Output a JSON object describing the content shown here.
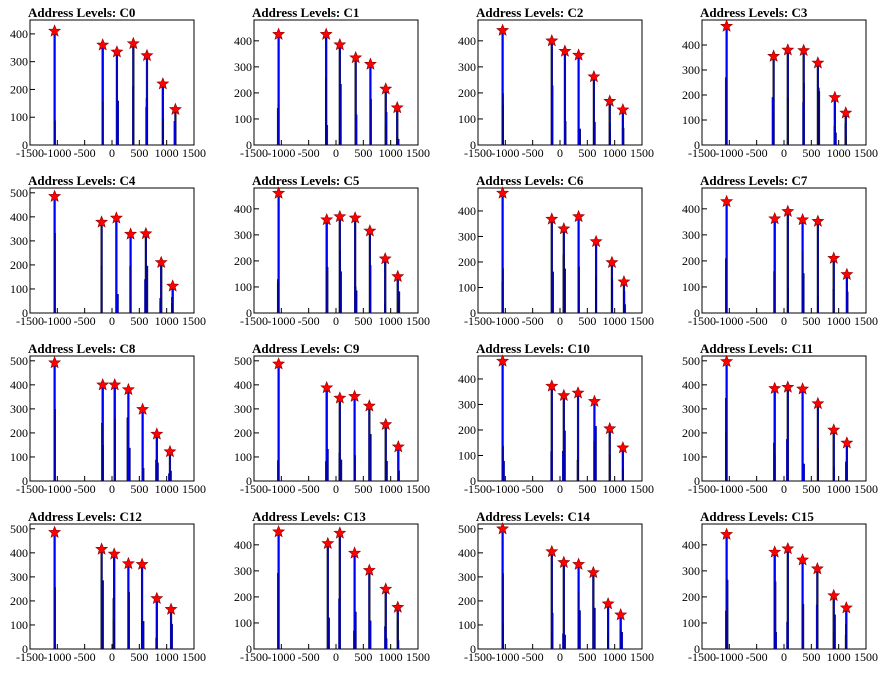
{
  "colors": {
    "bar_line": "#000000",
    "bar_fill": "#0000ff",
    "marker": "#ff0000"
  },
  "chart_data": [
    {
      "type": "bar",
      "title": "Address Levels: C0",
      "xlim": [
        -1500,
        1500
      ],
      "ylim": [
        0,
        450
      ],
      "xticks": [
        -1500,
        -1000,
        -500,
        0,
        500,
        1000,
        1500
      ],
      "xtick_labels": [
        "-1500",
        "-1000",
        "-500",
        "0",
        "500",
        "1000",
        "1500"
      ],
      "yticks": [
        0,
        100,
        200,
        300,
        400
      ],
      "ytick_labels": [
        "0",
        "100",
        "200",
        "300",
        "400"
      ],
      "peaks": [
        {
          "x": -1050,
          "y": 410
        },
        {
          "x": -170,
          "y": 360
        },
        {
          "x": 90,
          "y": 335
        },
        {
          "x": 390,
          "y": 365
        },
        {
          "x": 640,
          "y": 322
        },
        {
          "x": 930,
          "y": 220
        },
        {
          "x": 1160,
          "y": 128
        }
      ]
    },
    {
      "type": "bar",
      "title": "Address Levels: C1",
      "xlim": [
        -1500,
        1500
      ],
      "ylim": [
        0,
        480
      ],
      "xticks": [
        -1500,
        -1000,
        -500,
        0,
        500,
        1000,
        1500
      ],
      "xtick_labels": [
        "-1500",
        "-1000",
        "-500",
        "0",
        "500",
        "1000",
        "1500"
      ],
      "yticks": [
        0,
        100,
        200,
        300,
        400
      ],
      "ytick_labels": [
        "0",
        "100",
        "200",
        "300",
        "400"
      ],
      "peaks": [
        {
          "x": -1050,
          "y": 425
        },
        {
          "x": -180,
          "y": 425
        },
        {
          "x": 70,
          "y": 385
        },
        {
          "x": 360,
          "y": 335
        },
        {
          "x": 630,
          "y": 310
        },
        {
          "x": 910,
          "y": 215
        },
        {
          "x": 1120,
          "y": 143
        }
      ]
    },
    {
      "type": "bar",
      "title": "Address Levels: C2",
      "xlim": [
        -1500,
        1500
      ],
      "ylim": [
        0,
        480
      ],
      "xticks": [
        -1500,
        -1000,
        -500,
        0,
        500,
        1000,
        1500
      ],
      "xtick_labels": [
        "-1500",
        "-1000",
        "-500",
        "0",
        "500",
        "1000",
        "1500"
      ],
      "yticks": [
        0,
        100,
        200,
        300,
        400
      ],
      "ytick_labels": [
        "0",
        "100",
        "200",
        "300",
        "400"
      ],
      "peaks": [
        {
          "x": -1050,
          "y": 440
        },
        {
          "x": -150,
          "y": 400
        },
        {
          "x": 90,
          "y": 360
        },
        {
          "x": 340,
          "y": 345
        },
        {
          "x": 620,
          "y": 262
        },
        {
          "x": 910,
          "y": 168
        },
        {
          "x": 1150,
          "y": 135
        }
      ]
    },
    {
      "type": "bar",
      "title": "Address Levels: C3",
      "xlim": [
        -1500,
        1500
      ],
      "ylim": [
        0,
        500
      ],
      "xticks": [
        -1500,
        -1000,
        -500,
        0,
        500,
        1000,
        1500
      ],
      "xtick_labels": [
        "-1500",
        "-1000",
        "-500",
        "0",
        "500",
        "1000",
        "1500"
      ],
      "yticks": [
        0,
        100,
        200,
        300,
        400
      ],
      "ytick_labels": [
        "0",
        "100",
        "200",
        "300",
        "400"
      ],
      "peaks": [
        {
          "x": -1050,
          "y": 475
        },
        {
          "x": -190,
          "y": 355
        },
        {
          "x": 70,
          "y": 380
        },
        {
          "x": 360,
          "y": 378
        },
        {
          "x": 620,
          "y": 328
        },
        {
          "x": 930,
          "y": 190
        },
        {
          "x": 1130,
          "y": 128
        }
      ]
    },
    {
      "type": "bar",
      "title": "Address Levels: C4",
      "xlim": [
        -1500,
        1500
      ],
      "ylim": [
        0,
        520
      ],
      "xticks": [
        -1500,
        -1000,
        -500,
        0,
        500,
        1000,
        1500
      ],
      "xtick_labels": [
        "-1500",
        "-1000",
        "-500",
        "0",
        "500",
        "1000",
        "1500"
      ],
      "yticks": [
        0,
        100,
        200,
        300,
        400,
        500
      ],
      "ytick_labels": [
        "0",
        "100",
        "200",
        "300",
        "400",
        "500"
      ],
      "peaks": [
        {
          "x": -1050,
          "y": 485
        },
        {
          "x": -190,
          "y": 378
        },
        {
          "x": 80,
          "y": 395
        },
        {
          "x": 340,
          "y": 328
        },
        {
          "x": 620,
          "y": 330
        },
        {
          "x": 900,
          "y": 210
        },
        {
          "x": 1110,
          "y": 112
        }
      ]
    },
    {
      "type": "bar",
      "title": "Address Levels: C5",
      "xlim": [
        -1500,
        1500
      ],
      "ylim": [
        0,
        480
      ],
      "xticks": [
        -1500,
        -1000,
        -500,
        0,
        500,
        1000,
        1500
      ],
      "xtick_labels": [
        "-1500",
        "-1000",
        "-500",
        "0",
        "500",
        "1000",
        "1500"
      ],
      "yticks": [
        0,
        100,
        200,
        300,
        400
      ],
      "ytick_labels": [
        "0",
        "100",
        "200",
        "300",
        "400"
      ],
      "peaks": [
        {
          "x": -1050,
          "y": 460
        },
        {
          "x": -170,
          "y": 358
        },
        {
          "x": 70,
          "y": 370
        },
        {
          "x": 350,
          "y": 365
        },
        {
          "x": 620,
          "y": 315
        },
        {
          "x": 900,
          "y": 208
        },
        {
          "x": 1130,
          "y": 140
        }
      ]
    },
    {
      "type": "bar",
      "title": "Address Levels: C6",
      "xlim": [
        -1500,
        1500
      ],
      "ylim": [
        0,
        490
      ],
      "xticks": [
        -1500,
        -1000,
        -500,
        0,
        500,
        1000,
        1500
      ],
      "xtick_labels": [
        "-1500",
        "-1000",
        "-500",
        "0",
        "500",
        "1000",
        "1500"
      ],
      "yticks": [
        0,
        100,
        200,
        300,
        400
      ],
      "ytick_labels": [
        "0",
        "100",
        "200",
        "300",
        "400"
      ],
      "peaks": [
        {
          "x": -1050,
          "y": 470
        },
        {
          "x": -150,
          "y": 368
        },
        {
          "x": 70,
          "y": 330
        },
        {
          "x": 340,
          "y": 378
        },
        {
          "x": 660,
          "y": 280
        },
        {
          "x": 950,
          "y": 198
        },
        {
          "x": 1170,
          "y": 122
        }
      ]
    },
    {
      "type": "bar",
      "title": "Address Levels: C7",
      "xlim": [
        -1500,
        1500
      ],
      "ylim": [
        0,
        480
      ],
      "xticks": [
        -1500,
        -1000,
        -500,
        0,
        500,
        1000,
        1500
      ],
      "xtick_labels": [
        "-1500",
        "-1000",
        "-500",
        "0",
        "500",
        "1000",
        "1500"
      ],
      "yticks": [
        0,
        100,
        200,
        300,
        400
      ],
      "ytick_labels": [
        "0",
        "100",
        "200",
        "300",
        "400"
      ],
      "peaks": [
        {
          "x": -1050,
          "y": 428
        },
        {
          "x": -170,
          "y": 362
        },
        {
          "x": 70,
          "y": 390
        },
        {
          "x": 340,
          "y": 358
        },
        {
          "x": 620,
          "y": 352
        },
        {
          "x": 910,
          "y": 210
        },
        {
          "x": 1150,
          "y": 148
        }
      ]
    },
    {
      "type": "bar",
      "title": "Address Levels: C8",
      "xlim": [
        -1500,
        1500
      ],
      "ylim": [
        0,
        520
      ],
      "xticks": [
        -1500,
        -1000,
        -500,
        0,
        500,
        1000,
        1500
      ],
      "xtick_labels": [
        "-1500",
        "-1000",
        "-500",
        "0",
        "500",
        "1000",
        "1500"
      ],
      "yticks": [
        0,
        100,
        200,
        300,
        400,
        500
      ],
      "ytick_labels": [
        "0",
        "100",
        "200",
        "300",
        "400",
        "500"
      ],
      "peaks": [
        {
          "x": -1050,
          "y": 492
        },
        {
          "x": -170,
          "y": 400
        },
        {
          "x": 50,
          "y": 400
        },
        {
          "x": 300,
          "y": 380
        },
        {
          "x": 560,
          "y": 298
        },
        {
          "x": 820,
          "y": 195
        },
        {
          "x": 1060,
          "y": 122
        }
      ]
    },
    {
      "type": "bar",
      "title": "Address Levels: C9",
      "xlim": [
        -1500,
        1500
      ],
      "ylim": [
        0,
        520
      ],
      "xticks": [
        -1500,
        -1000,
        -500,
        0,
        500,
        1000,
        1500
      ],
      "xtick_labels": [
        "-1500",
        "-1000",
        "-500",
        "0",
        "500",
        "1000",
        "1500"
      ],
      "yticks": [
        0,
        100,
        200,
        300,
        400,
        500
      ],
      "ytick_labels": [
        "0",
        "100",
        "200",
        "300",
        "400",
        "500"
      ],
      "peaks": [
        {
          "x": -1050,
          "y": 487
        },
        {
          "x": -170,
          "y": 388
        },
        {
          "x": 70,
          "y": 345
        },
        {
          "x": 340,
          "y": 352
        },
        {
          "x": 610,
          "y": 312
        },
        {
          "x": 910,
          "y": 235
        },
        {
          "x": 1140,
          "y": 142
        }
      ]
    },
    {
      "type": "bar",
      "title": "Address Levels: C10",
      "xlim": [
        -1500,
        1500
      ],
      "ylim": [
        0,
        490
      ],
      "xticks": [
        -1500,
        -1000,
        -500,
        0,
        500,
        1000,
        1500
      ],
      "xtick_labels": [
        "-1500",
        "-1000",
        "-500",
        "0",
        "500",
        "1000",
        "1500"
      ],
      "yticks": [
        0,
        100,
        200,
        300,
        400
      ],
      "ytick_labels": [
        "0",
        "100",
        "200",
        "300",
        "400"
      ],
      "peaks": [
        {
          "x": -1050,
          "y": 470
        },
        {
          "x": -150,
          "y": 372
        },
        {
          "x": 70,
          "y": 335
        },
        {
          "x": 330,
          "y": 345
        },
        {
          "x": 630,
          "y": 312
        },
        {
          "x": 910,
          "y": 205
        },
        {
          "x": 1150,
          "y": 130
        }
      ]
    },
    {
      "type": "bar",
      "title": "Address Levels: C11",
      "xlim": [
        -1500,
        1500
      ],
      "ylim": [
        0,
        520
      ],
      "xticks": [
        -1500,
        -1000,
        -500,
        0,
        500,
        1000,
        1500
      ],
      "xtick_labels": [
        "-1500",
        "-1000",
        "-500",
        "0",
        "500",
        "1000",
        "1500"
      ],
      "yticks": [
        0,
        100,
        200,
        300,
        400,
        500
      ],
      "ytick_labels": [
        "0",
        "100",
        "200",
        "300",
        "400",
        "500"
      ],
      "peaks": [
        {
          "x": -1050,
          "y": 497
        },
        {
          "x": -170,
          "y": 385
        },
        {
          "x": 70,
          "y": 390
        },
        {
          "x": 340,
          "y": 383
        },
        {
          "x": 620,
          "y": 322
        },
        {
          "x": 910,
          "y": 212
        },
        {
          "x": 1150,
          "y": 158
        }
      ]
    },
    {
      "type": "bar",
      "title": "Address Levels: C12",
      "xlim": [
        -1500,
        1500
      ],
      "ylim": [
        0,
        520
      ],
      "xticks": [
        -1500,
        -1000,
        -500,
        0,
        500,
        1000,
        1500
      ],
      "xtick_labels": [
        "-1500",
        "-1000",
        "-500",
        "0",
        "500",
        "1000",
        "1500"
      ],
      "yticks": [
        0,
        100,
        200,
        300,
        400,
        500
      ],
      "ytick_labels": [
        "0",
        "100",
        "200",
        "300",
        "400",
        "500"
      ],
      "peaks": [
        {
          "x": -1050,
          "y": 485
        },
        {
          "x": -190,
          "y": 415
        },
        {
          "x": 40,
          "y": 395
        },
        {
          "x": 300,
          "y": 355
        },
        {
          "x": 550,
          "y": 352
        },
        {
          "x": 820,
          "y": 210
        },
        {
          "x": 1080,
          "y": 165
        }
      ]
    },
    {
      "type": "bar",
      "title": "Address Levels: C13",
      "xlim": [
        -1500,
        1500
      ],
      "ylim": [
        0,
        480
      ],
      "xticks": [
        -1500,
        -1000,
        -500,
        0,
        500,
        1000,
        1500
      ],
      "xtick_labels": [
        "-1500",
        "-1000",
        "-500",
        "0",
        "500",
        "1000",
        "1500"
      ],
      "yticks": [
        0,
        100,
        200,
        300,
        400
      ],
      "ytick_labels": [
        "0",
        "100",
        "200",
        "300",
        "400"
      ],
      "peaks": [
        {
          "x": -1050,
          "y": 450
        },
        {
          "x": -150,
          "y": 405
        },
        {
          "x": 70,
          "y": 445
        },
        {
          "x": 340,
          "y": 368
        },
        {
          "x": 610,
          "y": 302
        },
        {
          "x": 910,
          "y": 230
        },
        {
          "x": 1130,
          "y": 160
        }
      ]
    },
    {
      "type": "bar",
      "title": "Address Levels: C14",
      "xlim": [
        -1500,
        1500
      ],
      "ylim": [
        0,
        520
      ],
      "xticks": [
        -1500,
        -1000,
        -500,
        0,
        500,
        1000,
        1500
      ],
      "xtick_labels": [
        "-1500",
        "-1000",
        "-500",
        "0",
        "500",
        "1000",
        "1500"
      ],
      "yticks": [
        0,
        100,
        200,
        300,
        400,
        500
      ],
      "ytick_labels": [
        "0",
        "100",
        "200",
        "300",
        "400",
        "500"
      ],
      "peaks": [
        {
          "x": -1050,
          "y": 500
        },
        {
          "x": -150,
          "y": 405
        },
        {
          "x": 70,
          "y": 360
        },
        {
          "x": 340,
          "y": 352
        },
        {
          "x": 610,
          "y": 318
        },
        {
          "x": 880,
          "y": 188
        },
        {
          "x": 1110,
          "y": 142
        }
      ]
    },
    {
      "type": "bar",
      "title": "Address Levels: C15",
      "xlim": [
        -1500,
        1500
      ],
      "ylim": [
        0,
        480
      ],
      "xticks": [
        -1500,
        -1000,
        -500,
        0,
        500,
        1000,
        1500
      ],
      "xtick_labels": [
        "-1500",
        "-1000",
        "-500",
        "0",
        "500",
        "1000",
        "1500"
      ],
      "yticks": [
        0,
        100,
        200,
        300,
        400
      ],
      "ytick_labels": [
        "0",
        "100",
        "200",
        "300",
        "400"
      ],
      "peaks": [
        {
          "x": -1050,
          "y": 440
        },
        {
          "x": -170,
          "y": 372
        },
        {
          "x": 70,
          "y": 385
        },
        {
          "x": 340,
          "y": 342
        },
        {
          "x": 610,
          "y": 308
        },
        {
          "x": 910,
          "y": 205
        },
        {
          "x": 1140,
          "y": 158
        }
      ]
    }
  ]
}
